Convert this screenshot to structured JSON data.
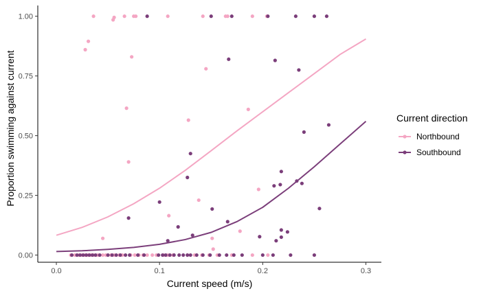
{
  "chart_data": {
    "type": "scatter",
    "title": "",
    "xlabel": "Current speed (m/s)",
    "ylabel": "Proportion swimming against current",
    "xlim": [
      -0.018,
      0.315
    ],
    "ylim": [
      -0.03,
      1.045
    ],
    "x_ticks": [
      0.0,
      0.1,
      0.2,
      0.3
    ],
    "x_tick_labels": [
      "0.0",
      "0.1",
      "0.2",
      "0.3"
    ],
    "y_ticks": [
      0.0,
      0.25,
      0.5,
      0.75,
      1.0
    ],
    "y_tick_labels": [
      "0.00",
      "0.25",
      "0.50",
      "0.75",
      "1.00"
    ],
    "grid": false,
    "legend": {
      "title": "Current direction",
      "position": "right",
      "entries": [
        "Northbound",
        "Southbound"
      ]
    },
    "series": [
      {
        "name": "Northbound",
        "color": "#f4a6c3",
        "points": [
          [
            0.036,
            1.0
          ],
          [
            0.055,
            0.985
          ],
          [
            0.056,
            0.995
          ],
          [
            0.066,
            1.0
          ],
          [
            0.075,
            1.0
          ],
          [
            0.077,
            1.0
          ],
          [
            0.108,
            1.0
          ],
          [
            0.142,
            1.0
          ],
          [
            0.164,
            1.0
          ],
          [
            0.166,
            1.0
          ],
          [
            0.19,
            1.0
          ],
          [
            0.204,
            1.0
          ],
          [
            0.031,
            0.895
          ],
          [
            0.028,
            0.86
          ],
          [
            0.073,
            0.83
          ],
          [
            0.068,
            0.615
          ],
          [
            0.07,
            0.39
          ],
          [
            0.145,
            0.78
          ],
          [
            0.186,
            0.61
          ],
          [
            0.128,
            0.565
          ],
          [
            0.138,
            0.23
          ],
          [
            0.196,
            0.275
          ],
          [
            0.109,
            0.165
          ],
          [
            0.045,
            0.07
          ],
          [
            0.151,
            0.07
          ],
          [
            0.178,
            0.1
          ],
          [
            0.152,
            0.025
          ],
          [
            0.014,
            0.0
          ],
          [
            0.018,
            0.0
          ],
          [
            0.022,
            0.0
          ],
          [
            0.025,
            0.0
          ],
          [
            0.028,
            0.0
          ],
          [
            0.031,
            0.0
          ],
          [
            0.034,
            0.0
          ],
          [
            0.036,
            0.0
          ],
          [
            0.04,
            0.0
          ],
          [
            0.045,
            0.0
          ],
          [
            0.048,
            0.0
          ],
          [
            0.053,
            0.0
          ],
          [
            0.056,
            0.0
          ],
          [
            0.061,
            0.0
          ],
          [
            0.064,
            0.0
          ],
          [
            0.072,
            0.0
          ],
          [
            0.076,
            0.0
          ],
          [
            0.08,
            0.0
          ],
          [
            0.084,
            0.0
          ],
          [
            0.088,
            0.0
          ],
          [
            0.093,
            0.0
          ],
          [
            0.097,
            0.0
          ],
          [
            0.104,
            0.0
          ],
          [
            0.108,
            0.0
          ],
          [
            0.113,
            0.0
          ],
          [
            0.127,
            0.0
          ],
          [
            0.134,
            0.0
          ],
          [
            0.141,
            0.0
          ],
          [
            0.148,
            0.0
          ],
          [
            0.156,
            0.0
          ],
          [
            0.17,
            0.0
          ],
          [
            0.19,
            0.0
          ],
          [
            0.205,
            0.0
          ]
        ],
        "fit": [
          [
            0.0,
            0.083
          ],
          [
            0.025,
            0.116
          ],
          [
            0.05,
            0.16
          ],
          [
            0.075,
            0.215
          ],
          [
            0.1,
            0.28
          ],
          [
            0.125,
            0.355
          ],
          [
            0.15,
            0.437
          ],
          [
            0.175,
            0.52
          ],
          [
            0.2,
            0.6
          ],
          [
            0.225,
            0.68
          ],
          [
            0.25,
            0.76
          ],
          [
            0.275,
            0.84
          ],
          [
            0.3,
            0.905
          ]
        ]
      },
      {
        "name": "Southbound",
        "color": "#7b3e7a",
        "points": [
          [
            0.088,
            1.0
          ],
          [
            0.15,
            1.0
          ],
          [
            0.17,
            1.0
          ],
          [
            0.205,
            1.0
          ],
          [
            0.232,
            1.0
          ],
          [
            0.25,
            1.0
          ],
          [
            0.262,
            1.0
          ],
          [
            0.167,
            0.82
          ],
          [
            0.212,
            0.815
          ],
          [
            0.235,
            0.775
          ],
          [
            0.264,
            0.545
          ],
          [
            0.24,
            0.515
          ],
          [
            0.13,
            0.425
          ],
          [
            0.218,
            0.35
          ],
          [
            0.127,
            0.325
          ],
          [
            0.217,
            0.295
          ],
          [
            0.211,
            0.29
          ],
          [
            0.233,
            0.31
          ],
          [
            0.238,
            0.3
          ],
          [
            0.1,
            0.222
          ],
          [
            0.151,
            0.193
          ],
          [
            0.255,
            0.195
          ],
          [
            0.07,
            0.155
          ],
          [
            0.118,
            0.118
          ],
          [
            0.166,
            0.14
          ],
          [
            0.218,
            0.105
          ],
          [
            0.224,
            0.097
          ],
          [
            0.132,
            0.083
          ],
          [
            0.197,
            0.077
          ],
          [
            0.218,
            0.075
          ],
          [
            0.213,
            0.06
          ],
          [
            0.108,
            0.06
          ],
          [
            0.015,
            0.0
          ],
          [
            0.02,
            0.0
          ],
          [
            0.023,
            0.0
          ],
          [
            0.026,
            0.0
          ],
          [
            0.029,
            0.0
          ],
          [
            0.032,
            0.0
          ],
          [
            0.035,
            0.0
          ],
          [
            0.038,
            0.0
          ],
          [
            0.042,
            0.0
          ],
          [
            0.05,
            0.0
          ],
          [
            0.054,
            0.0
          ],
          [
            0.058,
            0.0
          ],
          [
            0.062,
            0.0
          ],
          [
            0.067,
            0.0
          ],
          [
            0.071,
            0.0
          ],
          [
            0.079,
            0.0
          ],
          [
            0.085,
            0.0
          ],
          [
            0.099,
            0.0
          ],
          [
            0.103,
            0.0
          ],
          [
            0.106,
            0.0
          ],
          [
            0.11,
            0.0
          ],
          [
            0.114,
            0.0
          ],
          [
            0.119,
            0.0
          ],
          [
            0.123,
            0.0
          ],
          [
            0.127,
            0.0
          ],
          [
            0.13,
            0.0
          ],
          [
            0.136,
            0.0
          ],
          [
            0.142,
            0.0
          ],
          [
            0.149,
            0.0
          ],
          [
            0.158,
            0.0
          ],
          [
            0.165,
            0.0
          ],
          [
            0.172,
            0.0
          ],
          [
            0.18,
            0.0
          ],
          [
            0.2,
            0.0
          ],
          [
            0.21,
            0.0
          ],
          [
            0.227,
            0.0
          ],
          [
            0.25,
            0.0
          ]
        ],
        "fit": [
          [
            0.0,
            0.015
          ],
          [
            0.025,
            0.018
          ],
          [
            0.05,
            0.024
          ],
          [
            0.075,
            0.032
          ],
          [
            0.1,
            0.045
          ],
          [
            0.125,
            0.065
          ],
          [
            0.15,
            0.095
          ],
          [
            0.175,
            0.14
          ],
          [
            0.2,
            0.2
          ],
          [
            0.225,
            0.28
          ],
          [
            0.25,
            0.37
          ],
          [
            0.275,
            0.465
          ],
          [
            0.3,
            0.56
          ]
        ]
      }
    ]
  }
}
